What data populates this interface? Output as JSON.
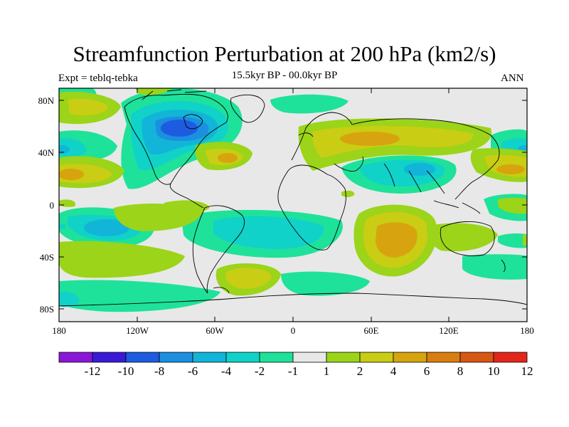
{
  "title": "Streamfunction Perturbation at 200 hPa (km2/s)",
  "subtitle_left": "Expt = teblq-tebka",
  "subtitle_center": "15.5kyr BP - 00.0kyr BP",
  "subtitle_right": "ANN",
  "axes": {
    "x_ticks": [
      "180",
      "120W",
      "60W",
      "0",
      "60E",
      "120E",
      "180"
    ],
    "y_ticks": [
      "80N",
      "40N",
      "0",
      "40S",
      "80S"
    ],
    "x_range_deg": [
      -180,
      180
    ],
    "y_range_deg": [
      -90,
      90
    ]
  },
  "colorbar": {
    "colors": [
      "#8a17d6",
      "#3a1ad6",
      "#1d5ce0",
      "#1b8fe0",
      "#12b4d8",
      "#10d2c8",
      "#1ee29a",
      "#e8e8e8",
      "#9bd419",
      "#c9cd13",
      "#d7a40f",
      "#d87d0f",
      "#d85713",
      "#e2271a"
    ],
    "tick_labels": [
      "-12",
      "-10",
      "-8",
      "-6",
      "-4",
      "-2",
      "-1",
      "1",
      "2",
      "4",
      "6",
      "8",
      "10",
      "12"
    ]
  },
  "map_data": {
    "type": "contour_map",
    "projection": "equirectangular",
    "variable": "streamfunction perturbation",
    "units": "km2/s",
    "level_hpa": 200,
    "anomalies": [
      {
        "region": "North Atlantic / Canada",
        "center_lon": -95,
        "center_lat": 65,
        "value": -8
      },
      {
        "region": "North Pacific",
        "center_lon": -160,
        "center_lat": 75,
        "value": 2
      },
      {
        "region": "Subtropical N Pacific",
        "center_lon": -160,
        "center_lat": 25,
        "value": 4
      },
      {
        "region": "West Pacific",
        "center_lon": 160,
        "center_lat": 22,
        "value": 4
      },
      {
        "region": "Eurasia",
        "center_lon": 40,
        "center_lat": 50,
        "value": 4
      },
      {
        "region": "Tibet / South Asia",
        "center_lon": 90,
        "center_lat": 28,
        "value": -4
      },
      {
        "region": "Indian Ocean",
        "center_lon": 70,
        "center_lat": -25,
        "value": 6
      },
      {
        "region": "South Atlantic",
        "center_lon": -30,
        "center_lat": -50,
        "value": 4
      },
      {
        "region": "South Pacific",
        "center_lon": -120,
        "center_lat": -20,
        "value": 2
      },
      {
        "region": "Tropical S Pacific",
        "center_lon": -150,
        "center_lat": -20,
        "value": -4
      },
      {
        "region": "South America / Atlantic",
        "center_lon": -15,
        "center_lat": -30,
        "value": -4
      },
      {
        "region": "Southern Ocean",
        "center_lon": -130,
        "center_lat": -65,
        "value": -2
      }
    ]
  }
}
